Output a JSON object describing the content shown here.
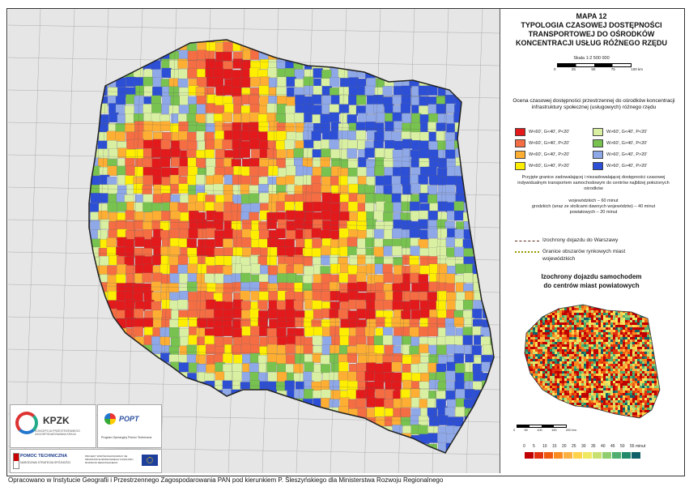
{
  "map": {
    "title_lines": [
      "MAPA 12",
      "TYPOLOGIA CZASOWEJ DOSTĘPNOŚCI",
      "TRANSPORTOWEJ DO OŚRODKÓW",
      "KONCENTRACJI USŁUG RÓŻNEGO RZĘDU"
    ],
    "scale": "Skala 1:2 500 000",
    "scale_ticks": [
      "0",
      "25",
      "50",
      "75",
      "100 km"
    ],
    "legend_heading": "Ocena czasowej dostępności przestrzennej do ośrodków koncentracji infrastruktury społecznej (usługowych) różnego rzędu",
    "legend_items": [
      {
        "label": "W<60', G<40', P<20'",
        "color": "#e31a1c"
      },
      {
        "label": "W>60', G<40', P<20'",
        "color": "#d9f0a3"
      },
      {
        "label": "W<60', G>40', P<20'",
        "color": "#f46d43"
      },
      {
        "label": "W>60', G>40', P<20'",
        "color": "#78c250"
      },
      {
        "label": "W<60', G<40', P>20'",
        "color": "#fdae33"
      },
      {
        "label": "W>60', G<40', P>20'",
        "color": "#8fa8e8"
      },
      {
        "label": "W<60', G>40', P>20'",
        "color": "#ffee00"
      },
      {
        "label": "W>60', G>40', P>20'",
        "color": "#2c4fd6"
      }
    ],
    "threshold_note": "Przyjęte granice zadowalającej i niezadowalającej dostępności czasowej indywidualnym transportem samochodowym do centrów najbliżej położonych ośrodków",
    "threshold_lines": [
      "wojewódzkich – 60 minut",
      "grodzkich (wraz ze stolicami dawnych województw) – 40 minut",
      "powiatowych – 20 minut"
    ],
    "line_legend": [
      {
        "label": "Izochrony dojazdu do Warszawy",
        "color": "#5a2a1a"
      },
      {
        "label": "Granice obszarów rynkowych miast wojewódzkich",
        "color": "#999900"
      }
    ],
    "inset": {
      "title_lines": [
        "Izochrony dojazdu samochodem",
        "do centrów miast powiatowych"
      ],
      "scale_ticks": [
        "0",
        "50",
        "100",
        "150",
        "200 km"
      ],
      "colorbar_ticks": [
        "0",
        "5",
        "10",
        "15",
        "20",
        "25",
        "30",
        "35",
        "40",
        "45",
        "50",
        "55 minut"
      ],
      "colorbar_colors": [
        "#c00000",
        "#e03010",
        "#f05a10",
        "#f88a20",
        "#fbb040",
        "#ffd24a",
        "#f0e860",
        "#c8e070",
        "#90cc70",
        "#4fae70",
        "#208a6a",
        "#10606a"
      ]
    },
    "logos": {
      "kpzk": "KPZK",
      "kpzk_sub": "KONCEPCJA PRZESTRZENNEGO ZAGOSPODAROWANIA KRAJU",
      "popt": "POPT",
      "popt_sub": "Program Operacyjny Pomoc Techniczna",
      "pomoc": "POMOC TECHNICZNA",
      "pomoc_sub": "NARODOWA STRATEGIA SPÓJNOŚCI",
      "eu_line": "PROJEKT WSPÓŁFINANSOWANY ZE ŚRODKÓW EUROPEJSKIEGO FUNDUSZU ROZWOJU REGIONALNEGO"
    },
    "caption": "Opracowano w Instytucie Geografii i Przestrzennego Zagospodarowania PAN pod kierunkiem P. Śleszyńskiego dla Ministerstwa Rozwoju Regionalnego"
  }
}
